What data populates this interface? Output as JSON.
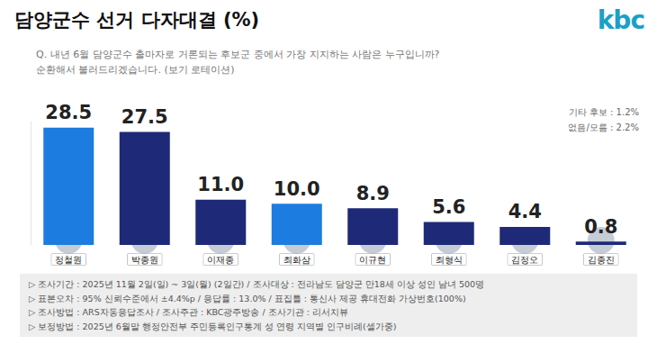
{
  "chart_data": {
    "type": "bar",
    "title": "담양군수 선거 다자대결 (%)",
    "logo": "kbc",
    "subtitle": [
      "Q. 내년 6월 담양군수 출마자로 거론되는 후보군 중에서 가장 지지하는 사람은 누구입니까?",
      "순환해서 불러드리겠습니다. (보기 로테이션)"
    ],
    "annotations": [
      "기타 후보 : 1.2%",
      "없음/모름 : 2.2%"
    ],
    "notes": [
      "▷ 조사기간 : 2025년 11월 2일(일) ~ 3일(월) (2일간) / 조사대상 : 전라남도 담양군 만18세 이상 성인 남녀 500명",
      "▷ 표본오차 : 95% 신뢰수준에서 ±4.4%p / 응답률 : 13.0% / 표집틀 : 통신사 제공 휴대전화 가상번호(100%)",
      "▷ 조사방법 : ARS자동응답조사 / 조사주관 : KBC광주방송 / 조사기관 : 리서치뷰",
      "▷ 보정방법 : 2025년 6월말 행정안전부 주민등록인구통계 성 연령 지역별 인구비례(셀가중)"
    ],
    "categories": [
      "정철원",
      "박종원",
      "이재종",
      "최화삼",
      "이규현",
      "최형식",
      "김정오",
      "김종진"
    ],
    "values": [
      28.5,
      27.5,
      11.0,
      10.0,
      8.9,
      5.6,
      4.4,
      0.8
    ],
    "value_labels": [
      "28.5",
      "27.5",
      "11.0",
      "10.0",
      "8.9",
      "5.6",
      "4.4",
      "0.8"
    ],
    "colors": [
      "#1c7ce0",
      "#1e2a78",
      "#1e2a78",
      "#1c7ce0",
      "#1e2a78",
      "#1e2a78",
      "#1e2a78",
      "#1e2a78"
    ],
    "ylim": [
      0,
      30
    ],
    "data_labels": true,
    "tick_labels": "x",
    "grid": false
  }
}
